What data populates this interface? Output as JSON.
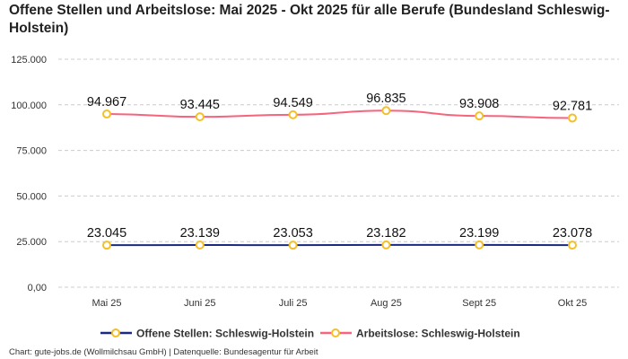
{
  "chart_data": {
    "type": "line",
    "title": "Offene Stellen und Arbeitslose: Mai 2025 - Okt 2025 für alle Berufe (Bundesland Schleswig-Holstein)",
    "categories": [
      "Mai 25",
      "Juni 25",
      "Juli 25",
      "Aug 25",
      "Sept 25",
      "Okt 25"
    ],
    "ylim": [
      0,
      125000
    ],
    "yticks": [
      0,
      25000,
      50000,
      75000,
      100000,
      125000
    ],
    "ytick_labels": [
      "0,00",
      "25.000",
      "50.000",
      "75.000",
      "100.000",
      "125.000"
    ],
    "grid": true,
    "legend_position": "bottom",
    "series": [
      {
        "name": "Offene Stellen: Schleswig-Holstein",
        "values": [
          23045,
          23139,
          23053,
          23182,
          23199,
          23078
        ],
        "labels": [
          "23.045",
          "23.139",
          "23.053",
          "23.182",
          "23.199",
          "23.078"
        ],
        "color": "#1a2a80"
      },
      {
        "name": "Arbeitslose: Schleswig-Holstein",
        "values": [
          94967,
          93445,
          94549,
          96835,
          93908,
          92781
        ],
        "labels": [
          "94.967",
          "93.445",
          "94.549",
          "96.835",
          "93.908",
          "92.781"
        ],
        "color": "#f7647d"
      }
    ],
    "marker_color": "#f5c027"
  },
  "credit": "Chart: gute-jobs.de (Wollmilchsau GmbH) | Datenquelle: Bundesagentur für Arbeit"
}
